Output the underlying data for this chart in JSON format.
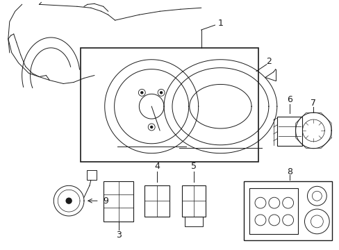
{
  "background_color": "#ffffff",
  "line_color": "#1a1a1a",
  "figure_width": 4.89,
  "figure_height": 3.6,
  "dpi": 100
}
